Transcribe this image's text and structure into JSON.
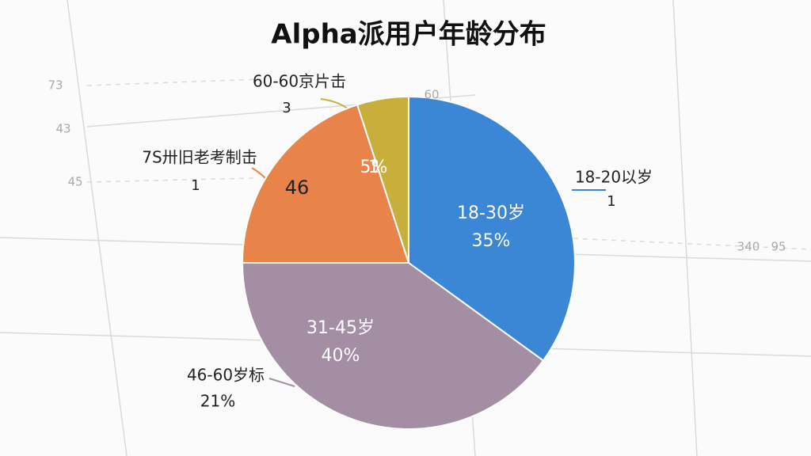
{
  "chart_data": {
    "type": "pie",
    "title": "Alpha派用户年龄分布",
    "categories": [
      "18-30岁",
      "31-45岁",
      null,
      null
    ],
    "values": [
      35,
      40,
      20,
      5
    ],
    "value_labels": [
      "35%",
      "40%",
      null,
      "5%"
    ],
    "colors": [
      "#3b87d5",
      "#a38ea3",
      "#e8834a",
      "#c8af3b"
    ],
    "start_angle": 0,
    "direction": "clockwise",
    "annotations": [
      "46",
      "1",
      "60-60京片击",
      "3",
      "7S卅旧老考制击",
      "1",
      "18-20以岁",
      "1",
      "46-60岁标",
      "21%"
    ],
    "background_labels": [
      "73",
      "43",
      "45",
      "60",
      "340",
      "95"
    ]
  }
}
